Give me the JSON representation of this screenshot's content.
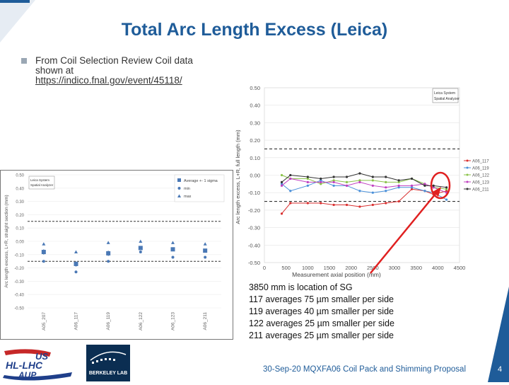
{
  "slide": {
    "title": "Total Arc Length Excess (Leica)",
    "bullet_lines": [
      "From Coil Selection Review Coil data",
      "shown at"
    ],
    "bullet_link": "https://indico.fnal.gov/event/45118/",
    "annotation": [
      "3850 mm is location of SG",
      "117 averages 75 µm smaller per side",
      "119 averages 40 µm smaller per side",
      "122 averages 25 µm smaller per side",
      "211 averages 25 µm smaller per side"
    ],
    "footer": "30-Sep-20 MQXFA06 Coil Pack and Shimming Proposal",
    "page_number": "4",
    "logo_us_lines": [
      "US",
      "HL-LHC",
      "AUP"
    ],
    "logo_bl_text": "BERKELEY LAB",
    "colors": {
      "title": "#1f5c99",
      "accent": "#1f5c99",
      "annotation_arrow": "#e02020"
    }
  },
  "chart_data": [
    {
      "type": "line",
      "legend_box": [
        "Leica System",
        "Spatial Analyzer"
      ],
      "ylabel": "Arc length excess, L+R, full length (mm)",
      "xlabel": "Measurement axial position (mm)",
      "xlim": [
        0,
        4500
      ],
      "ylim": [
        -0.5,
        0.5
      ],
      "xticks": [
        "0",
        "500",
        "1000",
        "1500",
        "2000",
        "2500",
        "3000",
        "3500",
        "4000",
        "4500"
      ],
      "yticks": [
        "0.50",
        "0.40",
        "0.30",
        "0.20",
        "0.10",
        "0.00",
        "-0.10",
        "-0.20",
        "-0.30",
        "-0.40",
        "-0.50"
      ],
      "reference_lines": [
        0.15,
        -0.15
      ],
      "legend": "right",
      "x": [
        400,
        600,
        1000,
        1300,
        1600,
        1900,
        2200,
        2500,
        2800,
        3100,
        3400,
        3700,
        3900,
        4200
      ],
      "series": [
        {
          "name": "A06_117",
          "color": "#d93030",
          "values": [
            -0.22,
            -0.16,
            -0.16,
            -0.16,
            -0.17,
            -0.17,
            -0.18,
            -0.17,
            -0.16,
            -0.15,
            -0.08,
            -0.09,
            -0.11,
            -0.09
          ]
        },
        {
          "name": "A06_119",
          "color": "#4a90d9",
          "values": [
            -0.05,
            -0.09,
            -0.06,
            -0.03,
            -0.06,
            -0.06,
            -0.09,
            -0.1,
            -0.09,
            -0.07,
            -0.07,
            -0.09,
            -0.1,
            -0.14
          ]
        },
        {
          "name": "A06_122",
          "color": "#8bc34a",
          "values": [
            0.0,
            -0.02,
            -0.02,
            -0.05,
            -0.03,
            -0.04,
            -0.03,
            -0.03,
            -0.04,
            -0.04,
            -0.02,
            -0.05,
            -0.07,
            -0.08
          ]
        },
        {
          "name": "A06_123",
          "color": "#c040c0",
          "values": [
            -0.06,
            -0.02,
            -0.04,
            -0.04,
            -0.04,
            -0.06,
            -0.04,
            -0.06,
            -0.07,
            -0.06,
            -0.06,
            -0.05,
            -0.07,
            -0.1
          ]
        },
        {
          "name": "A06_211",
          "color": "#333333",
          "values": [
            -0.04,
            0.0,
            -0.01,
            -0.02,
            -0.01,
            -0.01,
            0.01,
            -0.01,
            -0.01,
            -0.03,
            -0.02,
            -0.06,
            -0.06,
            -0.07
          ]
        }
      ]
    },
    {
      "type": "scatter",
      "legend_box": [
        "Leica System",
        "Spatial Analyzer"
      ],
      "legend_items": [
        "Average +- 1 sigma",
        "min",
        "max"
      ],
      "ylabel": "Arc length excess, L+R, straight section (mm)",
      "categories": [
        "A05_207",
        "A06_117",
        "A06_119",
        "A06_122",
        "A06_123",
        "A06_211"
      ],
      "ylim": [
        -0.5,
        0.5
      ],
      "yticks": [
        "0.50",
        "0.40",
        "0.30",
        "0.20",
        "0.10",
        "0.00",
        "-0.10",
        "-0.20",
        "-0.30",
        "-0.40",
        "-0.50"
      ],
      "reference_lines": [
        0.15,
        -0.15
      ],
      "average": [
        -0.08,
        -0.17,
        -0.09,
        -0.05,
        -0.06,
        -0.07
      ],
      "sigma": [
        0.02,
        0.02,
        0.02,
        0.01,
        0.01,
        0.01
      ],
      "min": [
        -0.15,
        -0.23,
        -0.15,
        -0.08,
        -0.12,
        -0.12
      ],
      "max": [
        -0.02,
        -0.08,
        -0.01,
        0.0,
        -0.01,
        -0.02
      ]
    }
  ]
}
